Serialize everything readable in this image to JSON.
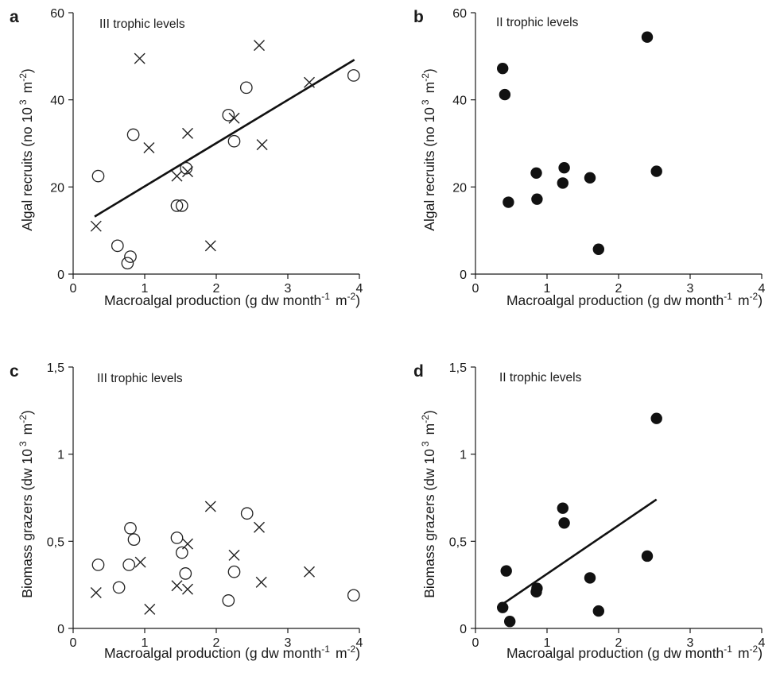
{
  "chart_data": [
    {
      "panel": "a",
      "type": "scatter",
      "note": "III trophic levels",
      "xlabel": "Macroalgal production (g dw month",
      "xlabel_sup1": "-1",
      "xlabel_mid": "m",
      "xlabel_sup2": "-2",
      "xlabel_end": ")",
      "ylabel": "Algal recruits (no 10",
      "ylabel_sup1": "3",
      "ylabel_mid": "m",
      "ylabel_sup2": "-2",
      "ylabel_end": ")",
      "xlim": [
        0,
        4
      ],
      "ylim": [
        0,
        60
      ],
      "xticks": [
        0,
        1,
        2,
        3,
        4
      ],
      "yticks": [
        0,
        20,
        40,
        60
      ],
      "xtick_labels": [
        "0",
        "1",
        "2",
        "3",
        "4"
      ],
      "ytick_labels": [
        "0",
        "20",
        "40",
        "60"
      ],
      "series": [
        {
          "marker": "open-circle",
          "points": [
            [
              0.35,
              22.5
            ],
            [
              0.62,
              6.5
            ],
            [
              0.76,
              2.5
            ],
            [
              0.8,
              4.0
            ],
            [
              0.84,
              32.0
            ],
            [
              1.45,
              15.7
            ],
            [
              1.52,
              15.7
            ],
            [
              1.58,
              24.3
            ],
            [
              2.17,
              36.5
            ],
            [
              2.25,
              30.5
            ],
            [
              2.42,
              42.8
            ],
            [
              3.92,
              45.6
            ]
          ]
        },
        {
          "marker": "cross",
          "points": [
            [
              0.32,
              11.0
            ],
            [
              0.93,
              49.5
            ],
            [
              1.06,
              29.0
            ],
            [
              1.45,
              22.5
            ],
            [
              1.6,
              32.3
            ],
            [
              1.6,
              23.5
            ],
            [
              1.92,
              6.5
            ],
            [
              2.25,
              35.8
            ],
            [
              2.6,
              52.5
            ],
            [
              2.64,
              29.7
            ],
            [
              3.3,
              44.0
            ]
          ]
        }
      ],
      "fit": [
        [
          0.3,
          13.2
        ],
        [
          3.93,
          49.2
        ]
      ]
    },
    {
      "panel": "b",
      "type": "scatter",
      "note": "II trophic levels",
      "xlabel": "Macroalgal production (g dw month",
      "xlabel_sup1": "-1",
      "xlabel_mid": "m",
      "xlabel_sup2": "-2",
      "xlabel_end": ")",
      "ylabel": "Algal recruits (no 10",
      "ylabel_sup1": "3",
      "ylabel_mid": "m",
      "ylabel_sup2": "-2",
      "ylabel_end": ")",
      "xlim": [
        0,
        4
      ],
      "ylim": [
        0,
        60
      ],
      "xticks": [
        0,
        1,
        2,
        3,
        4
      ],
      "yticks": [
        0,
        20,
        40,
        60
      ],
      "xtick_labels": [
        "0",
        "1",
        "2",
        "3",
        "4"
      ],
      "ytick_labels": [
        "0",
        "20",
        "40",
        "60"
      ],
      "series": [
        {
          "marker": "filled-circle",
          "points": [
            [
              0.38,
              47.2
            ],
            [
              0.41,
              41.2
            ],
            [
              0.46,
              16.5
            ],
            [
              0.85,
              23.2
            ],
            [
              0.86,
              17.2
            ],
            [
              1.22,
              20.9
            ],
            [
              1.24,
              24.4
            ],
            [
              1.6,
              22.1
            ],
            [
              1.72,
              5.7
            ],
            [
              2.4,
              54.4
            ],
            [
              2.53,
              23.6
            ]
          ]
        }
      ]
    },
    {
      "panel": "c",
      "type": "scatter",
      "note": "III trophic levels",
      "xlabel": "Macroalgal production (g dw month",
      "xlabel_sup1": "-1",
      "xlabel_mid": "m",
      "xlabel_sup2": "-2",
      "xlabel_end": ")",
      "ylabel": "Biomass grazers (dw 10",
      "ylabel_sup1": "3",
      "ylabel_mid": "m",
      "ylabel_sup2": "-2",
      "ylabel_end": ")",
      "xlim": [
        0,
        4
      ],
      "ylim": [
        0,
        1.5
      ],
      "xticks": [
        0,
        1,
        2,
        3,
        4
      ],
      "yticks": [
        0,
        0.5,
        1,
        1.5
      ],
      "xtick_labels": [
        "0",
        "1",
        "2",
        "3",
        "4"
      ],
      "ytick_labels": [
        "0",
        "0,5",
        "1",
        "1,5"
      ],
      "series": [
        {
          "marker": "open-circle",
          "points": [
            [
              0.35,
              0.365
            ],
            [
              0.64,
              0.235
            ],
            [
              0.78,
              0.365
            ],
            [
              0.8,
              0.575
            ],
            [
              0.85,
              0.51
            ],
            [
              1.45,
              0.52
            ],
            [
              1.52,
              0.435
            ],
            [
              1.57,
              0.315
            ],
            [
              2.17,
              0.16
            ],
            [
              2.25,
              0.325
            ],
            [
              2.43,
              0.66
            ],
            [
              3.92,
              0.19
            ]
          ]
        },
        {
          "marker": "cross",
          "points": [
            [
              0.32,
              0.205
            ],
            [
              0.94,
              0.38
            ],
            [
              1.07,
              0.11
            ],
            [
              1.45,
              0.245
            ],
            [
              1.6,
              0.485
            ],
            [
              1.6,
              0.225
            ],
            [
              1.92,
              0.7
            ],
            [
              2.25,
              0.42
            ],
            [
              2.6,
              0.58
            ],
            [
              2.63,
              0.265
            ],
            [
              3.3,
              0.325
            ]
          ]
        }
      ]
    },
    {
      "panel": "d",
      "type": "scatter",
      "note": "II trophic levels",
      "xlabel": "Macroalgal production (g dw month",
      "xlabel_sup1": "-1",
      "xlabel_mid": "m",
      "xlabel_sup2": "-2",
      "xlabel_end": ")",
      "ylabel": "Biomass grazers (dw 10",
      "ylabel_sup1": "3",
      "ylabel_mid": "m",
      "ylabel_sup2": "-2",
      "ylabel_end": ")",
      "xlim": [
        0,
        4
      ],
      "ylim": [
        0,
        1.5
      ],
      "xticks": [
        0,
        1,
        2,
        3,
        4
      ],
      "yticks": [
        0,
        0.5,
        1,
        1.5
      ],
      "xtick_labels": [
        "0",
        "1",
        "2",
        "3",
        "4"
      ],
      "ytick_labels": [
        "0",
        "0,5",
        "1",
        "1,5"
      ],
      "series": [
        {
          "marker": "filled-circle",
          "points": [
            [
              0.38,
              0.12
            ],
            [
              0.43,
              0.33
            ],
            [
              0.48,
              0.04
            ],
            [
              0.85,
              0.21
            ],
            [
              0.86,
              0.23
            ],
            [
              1.22,
              0.69
            ],
            [
              1.24,
              0.605
            ],
            [
              1.6,
              0.29
            ],
            [
              1.72,
              0.1
            ],
            [
              2.4,
              0.415
            ],
            [
              2.53,
              1.205
            ]
          ]
        }
      ],
      "fit": [
        [
          0.38,
          0.14
        ],
        [
          2.53,
          0.74
        ]
      ]
    }
  ]
}
